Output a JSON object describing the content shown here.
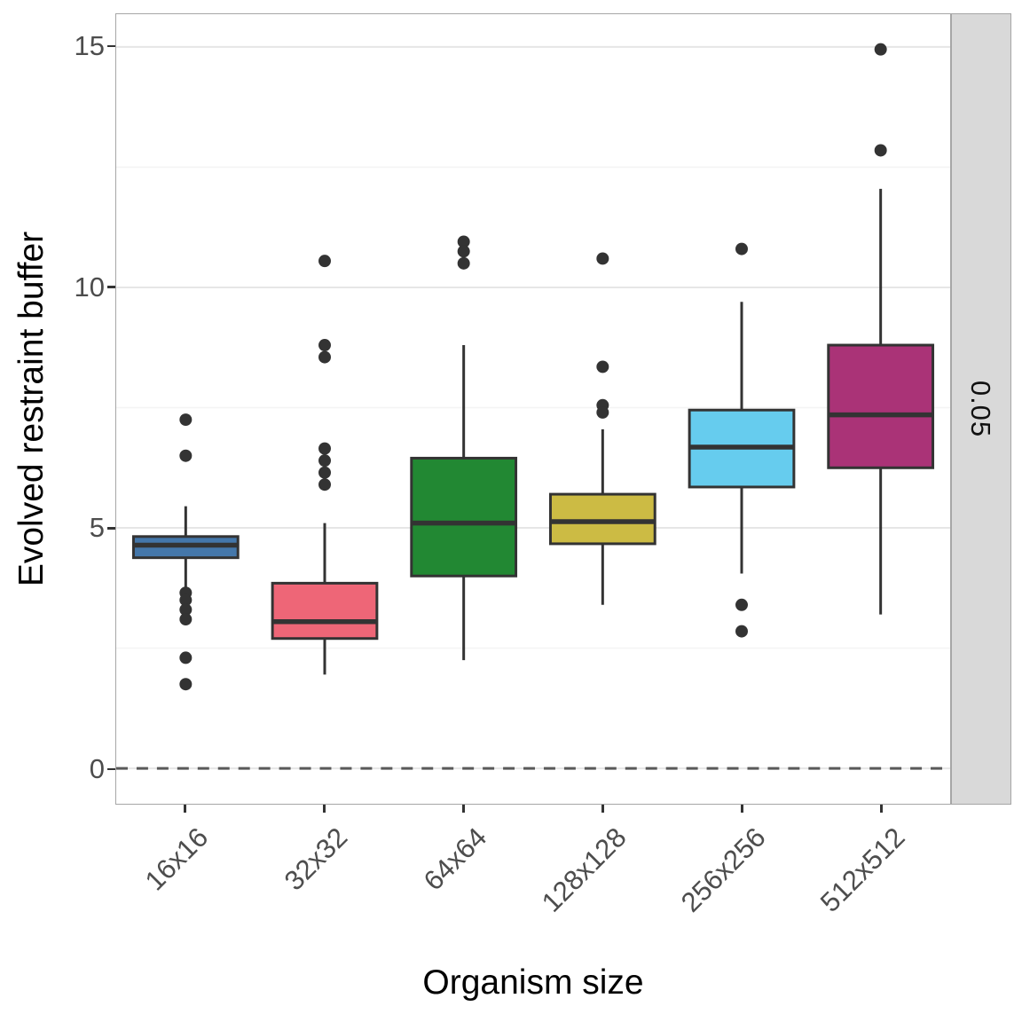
{
  "chart_data": {
    "type": "boxplot",
    "title": "",
    "xlabel": "Organism size",
    "ylabel": "Evolved restraint buffer",
    "facet_label_right": "0.05",
    "legend": "none",
    "grid": "on",
    "ylim": [
      -0.75,
      15.7
    ],
    "y_major_ticks": [
      0,
      5,
      10,
      15
    ],
    "y_minor_gridlines": [
      2.5,
      7.5,
      12.5
    ],
    "reference_line": {
      "y": 0,
      "style": "dashed",
      "color": "#595959"
    },
    "categories": [
      "16x16",
      "32x32",
      "64x64",
      "128x128",
      "256x256",
      "512x512"
    ],
    "series": [
      {
        "category": "16x16",
        "color": "#4477AA",
        "whisker_low": 3.75,
        "q1": 4.38,
        "median": 4.64,
        "q3": 4.82,
        "whisker_high": 5.45,
        "outliers": [
          7.25,
          6.5,
          3.65,
          3.5,
          3.3,
          3.1,
          2.3,
          1.75
        ]
      },
      {
        "category": "32x32",
        "color": "#EE6677",
        "whisker_low": 1.95,
        "q1": 2.7,
        "median": 3.05,
        "q3": 3.85,
        "whisker_high": 5.1,
        "outliers": [
          10.55,
          8.8,
          8.55,
          6.65,
          6.4,
          6.15,
          5.9
        ]
      },
      {
        "category": "64x64",
        "color": "#228833",
        "whisker_low": 2.25,
        "q1": 4.0,
        "median": 5.1,
        "q3": 6.45,
        "whisker_high": 8.8,
        "outliers": [
          10.95,
          10.75,
          10.5
        ]
      },
      {
        "category": "128x128",
        "color": "#CCBB44",
        "whisker_low": 3.4,
        "q1": 4.67,
        "median": 5.13,
        "q3": 5.7,
        "whisker_high": 7.05,
        "outliers": [
          10.6,
          8.35,
          7.55,
          7.4
        ]
      },
      {
        "category": "256x256",
        "color": "#66CCEE",
        "whisker_low": 4.05,
        "q1": 5.85,
        "median": 6.68,
        "q3": 7.45,
        "whisker_high": 9.7,
        "outliers": [
          10.8,
          3.4,
          2.85
        ]
      },
      {
        "category": "512x512",
        "color": "#AA3377",
        "whisker_low": 3.2,
        "q1": 6.25,
        "median": 7.35,
        "q3": 8.8,
        "whisker_high": 12.05,
        "outliers": [
          14.95,
          12.85
        ]
      }
    ]
  },
  "style": {
    "box_stroke": "#333333",
    "outlier_fill": "#333333",
    "gridline_major": "#e6e6e6",
    "gridline_minor": "#f4f4f4",
    "panel_border": "#a6a6a6",
    "strip_fill": "#d9d9d9",
    "tick_text": "#4d4d4d"
  }
}
